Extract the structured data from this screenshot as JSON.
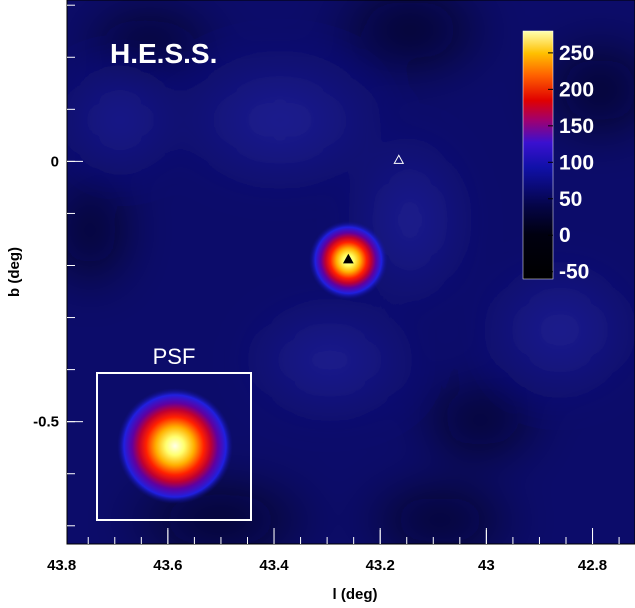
{
  "chart_data": {
    "type": "heatmap",
    "title": "H.E.S.S.",
    "xlabel": "l (deg)",
    "ylabel": "b (deg)",
    "xlim": [
      43.79,
      42.72
    ],
    "ylim": [
      -0.735,
      0.31
    ],
    "x_ticks": [
      {
        "value": 43.8,
        "label": "43.8"
      },
      {
        "value": 43.6,
        "label": "43.6"
      },
      {
        "value": 43.4,
        "label": "43.4"
      },
      {
        "value": 43.2,
        "label": "43.2"
      },
      {
        "value": 43.0,
        "label": "43"
      },
      {
        "value": 42.8,
        "label": "42.8"
      }
    ],
    "y_ticks": [
      {
        "value": 0.0,
        "label": "0"
      },
      {
        "value": -0.5,
        "label": "-0.5"
      }
    ],
    "colorbar": {
      "min": -60,
      "max": 280,
      "ticks": [
        {
          "value": 250,
          "label": "250"
        },
        {
          "value": 200,
          "label": "200"
        },
        {
          "value": 150,
          "label": "150"
        },
        {
          "value": 100,
          "label": "100"
        },
        {
          "value": 50,
          "label": "50"
        },
        {
          "value": 0,
          "label": "0"
        },
        {
          "value": -50,
          "label": "-50"
        }
      ]
    },
    "background_level": 40,
    "sources": [
      {
        "l": 43.26,
        "b": -0.19,
        "peak": 240,
        "sigma_deg": 0.055
      }
    ],
    "markers": [
      {
        "name": "filled-triangle",
        "l": 43.26,
        "b": -0.188,
        "fill": "#000000",
        "stroke": "#000000"
      },
      {
        "name": "open-triangle",
        "l": 43.165,
        "b": 0.003,
        "fill": "none",
        "stroke": "#ffffff"
      }
    ],
    "psf_inset": {
      "label": "PSF",
      "peak": 280,
      "center_l": 43.6,
      "center_b": -0.545
    }
  }
}
